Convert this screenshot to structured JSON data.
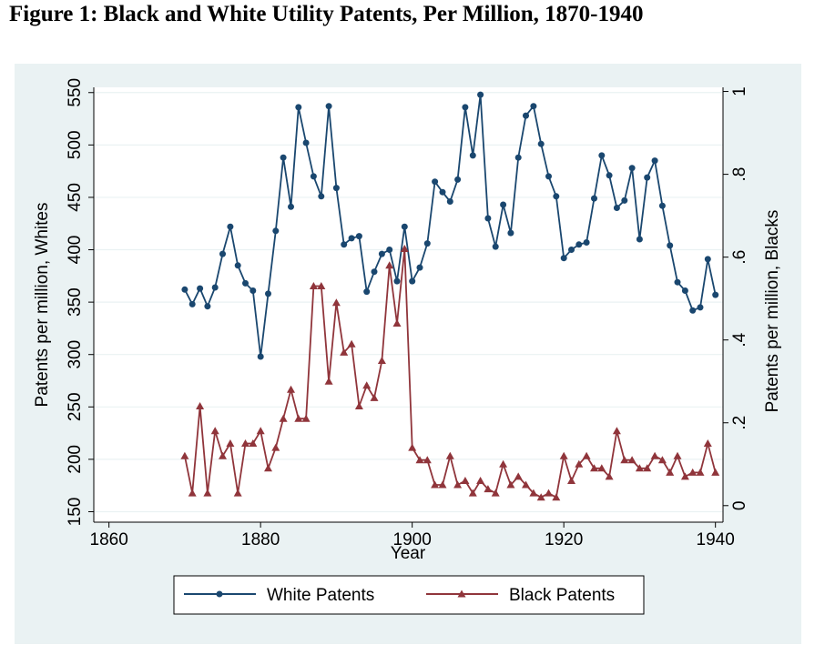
{
  "figure": {
    "title": "Figure 1: Black and White Utility Patents, Per Million, 1870-1940"
  },
  "colors": {
    "background": "#eaf2f3",
    "plot_area": "#ffffff",
    "white_series": "#1a476f",
    "black_series": "#90353b",
    "grid": "#eaf2f3"
  },
  "chart_data": {
    "type": "line",
    "title": "Figure 1: Black and White Utility Patents, Per Million, 1870-1940",
    "xlabel": "Year",
    "ylabel_left": "Patents per million, Whites",
    "ylabel_right": "Patents per million, Blacks",
    "xlim": [
      1858,
      1941
    ],
    "ylim_left": [
      140,
      555
    ],
    "ylim_right": [
      -0.04,
      1.01
    ],
    "x_ticks": [
      1860,
      1880,
      1900,
      1920,
      1940
    ],
    "y_left_ticks": [
      150,
      200,
      250,
      300,
      350,
      400,
      450,
      500,
      550
    ],
    "y_right_ticks": [
      0,
      0.2,
      0.4,
      0.6,
      0.8,
      1
    ],
    "y_right_tick_labels": [
      "0",
      ".2",
      ".4",
      ".6",
      ".8",
      "1"
    ],
    "grid": true,
    "legend_position": "bottom",
    "x": [
      1870,
      1871,
      1872,
      1873,
      1874,
      1875,
      1876,
      1877,
      1878,
      1879,
      1880,
      1881,
      1882,
      1883,
      1884,
      1885,
      1886,
      1887,
      1888,
      1889,
      1890,
      1891,
      1892,
      1893,
      1894,
      1895,
      1896,
      1897,
      1898,
      1899,
      1900,
      1901,
      1902,
      1903,
      1904,
      1905,
      1906,
      1907,
      1908,
      1909,
      1910,
      1911,
      1912,
      1913,
      1914,
      1915,
      1916,
      1917,
      1918,
      1919,
      1920,
      1921,
      1922,
      1923,
      1924,
      1925,
      1926,
      1927,
      1928,
      1929,
      1930,
      1931,
      1932,
      1933,
      1934,
      1935,
      1936,
      1937,
      1938,
      1939,
      1940
    ],
    "series": [
      {
        "name": "White Patents",
        "axis": "left",
        "marker": "circle",
        "values": [
          362,
          348,
          363,
          346,
          364,
          396,
          422,
          385,
          368,
          361,
          298,
          358,
          418,
          488,
          441,
          536,
          502,
          470,
          451,
          537,
          459,
          405,
          411,
          413,
          360,
          379,
          396,
          400,
          370,
          422,
          370,
          383,
          406,
          465,
          455,
          446,
          467,
          536,
          490,
          548,
          430,
          403,
          443,
          416,
          488,
          528,
          537,
          501,
          470,
          451,
          392,
          400,
          405,
          407,
          449,
          490,
          471,
          440,
          447,
          478,
          410,
          469,
          485,
          442,
          404,
          369,
          361,
          342,
          345,
          391,
          357
        ]
      },
      {
        "name": "Black Patents",
        "axis": "right",
        "marker": "triangle",
        "values": [
          0.12,
          0.03,
          0.24,
          0.03,
          0.18,
          0.12,
          0.15,
          0.03,
          0.15,
          0.15,
          0.18,
          0.09,
          0.14,
          0.21,
          0.28,
          0.21,
          0.21,
          0.53,
          0.53,
          0.3,
          0.49,
          0.37,
          0.39,
          0.24,
          0.29,
          0.26,
          0.35,
          0.58,
          0.44,
          0.62,
          0.14,
          0.11,
          0.11,
          0.05,
          0.05,
          0.12,
          0.05,
          0.06,
          0.03,
          0.06,
          0.04,
          0.03,
          0.1,
          0.05,
          0.07,
          0.05,
          0.03,
          0.02,
          0.03,
          0.02,
          0.12,
          0.06,
          0.1,
          0.12,
          0.09,
          0.09,
          0.07,
          0.18,
          0.11,
          0.11,
          0.09,
          0.09,
          0.12,
          0.11,
          0.08,
          0.12,
          0.07,
          0.08,
          0.08,
          0.15,
          0.08
        ]
      }
    ]
  }
}
